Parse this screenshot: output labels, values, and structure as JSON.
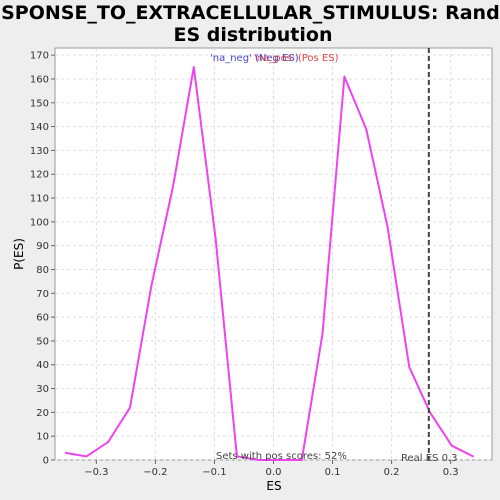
{
  "chart_data": {
    "type": "line",
    "title_lines": [
      "RESPONSE_TO_EXTRACELLULAR_STIMULUS: Random",
      "ES distribution"
    ],
    "xlabel": "ES",
    "ylabel": "P(ES)",
    "xlim": [
      -0.37,
      0.37
    ],
    "ylim": [
      0,
      173
    ],
    "x_ticks": [
      -0.3,
      -0.2,
      -0.1,
      0.0,
      0.1,
      0.2,
      0.3
    ],
    "x_tick_labels": [
      "−0.3",
      "−0.2",
      "−0.1",
      "0.0",
      "0.1",
      "0.2",
      "0.3"
    ],
    "y_ticks": [
      0,
      10,
      20,
      30,
      40,
      50,
      60,
      70,
      80,
      90,
      100,
      110,
      120,
      130,
      140,
      150,
      160,
      170
    ],
    "y_tick_labels": [
      "0",
      "10",
      "20",
      "30",
      "40",
      "50",
      "60",
      "70",
      "80",
      "90",
      "100",
      "110",
      "120",
      "130",
      "140",
      "150",
      "160",
      "170"
    ],
    "grid": true,
    "series": [
      {
        "color": "#ee44ee",
        "x": [
          -0.352,
          -0.317,
          -0.28,
          -0.243,
          -0.207,
          -0.17,
          -0.135,
          -0.098,
          -0.062,
          -0.025,
          0.012,
          0.048,
          0.083,
          0.12,
          0.157,
          0.193,
          0.23,
          0.265,
          0.302,
          0.338
        ],
        "y": [
          3,
          1.5,
          7.5,
          22,
          73,
          115,
          165,
          93,
          1.5,
          0,
          0,
          0,
          53,
          161,
          139,
          98,
          39,
          20,
          6,
          1.5
        ]
      }
    ],
    "legend": {
      "placement": "top-center",
      "entries": [
        {
          "label": "'na_neg' (Neg ES)",
          "color": "#4444cc"
        },
        {
          "label": "'na_pos' (Pos ES)",
          "color": "#dd4444"
        }
      ]
    },
    "real_es": {
      "x": 0.263,
      "label": "Real ES 0.3"
    },
    "annotation": "Sets with pos scores: 52%"
  }
}
